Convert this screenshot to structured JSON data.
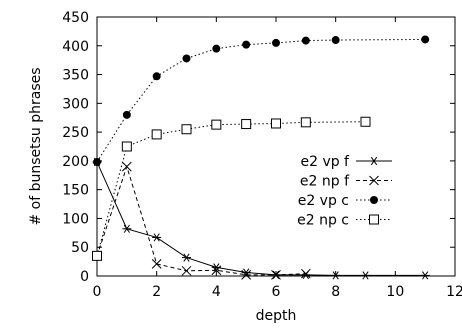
{
  "chart_data": {
    "type": "line",
    "xlabel": "depth",
    "ylabel": "# of bunsetsu phrases",
    "xlim": [
      0,
      12
    ],
    "ylim": [
      0,
      450
    ],
    "xticks": [
      "0",
      "2",
      "4",
      "6",
      "8",
      "10",
      "12"
    ],
    "yticks": [
      "0",
      "50",
      "100",
      "150",
      "200",
      "250",
      "300",
      "350",
      "400",
      "450"
    ],
    "grid": false,
    "legend_position": "right",
    "series": [
      {
        "name": "e2 vp f",
        "marker": "star",
        "line": "solid",
        "x": [
          0,
          1,
          2,
          3,
          4,
          5,
          6,
          7,
          8,
          9,
          11
        ],
        "y": [
          198,
          82,
          67,
          32,
          15,
          6,
          2,
          2,
          1,
          1,
          1
        ]
      },
      {
        "name": "e2 np f",
        "marker": "cross",
        "line": "dashed",
        "x": [
          0,
          1,
          2,
          3,
          4,
          5,
          6,
          7
        ],
        "y": [
          35,
          190,
          21,
          9,
          10,
          2,
          2,
          4
        ]
      },
      {
        "name": "e2 vp c",
        "marker": "filled-circle",
        "line": "dotted",
        "x": [
          0,
          1,
          2,
          3,
          4,
          5,
          6,
          7,
          8,
          11
        ],
        "y": [
          198,
          280,
          347,
          378,
          395,
          402,
          405,
          409,
          410,
          411
        ]
      },
      {
        "name": "e2 np c",
        "marker": "open-square",
        "line": "dotted",
        "x": [
          0,
          1,
          2,
          3,
          4,
          5,
          6,
          7,
          9
        ],
        "y": [
          35,
          225,
          246,
          255,
          263,
          264,
          265,
          267,
          268
        ]
      }
    ]
  }
}
